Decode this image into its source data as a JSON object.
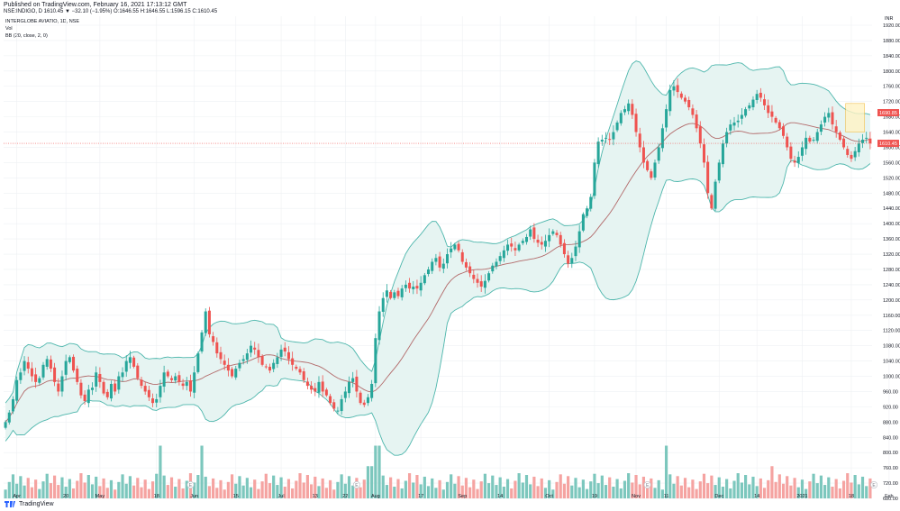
{
  "header": {
    "published": "Published on TradingView.com, February 16, 2021 17:13:12 GMT",
    "symbol_line": "NSE:INDIGO, D  1610.45 ▼ −32.10 (−1.95%)  O:1646.55  H:1646.55  L:1596.15  C:1610.45"
  },
  "legend": {
    "title": "INTERGLOBE AVIATIO, 1D, NSE",
    "vol": "Vol",
    "bb": "BB (20, close, 2, 0)"
  },
  "brand": {
    "name": "TradingView"
  },
  "colors": {
    "up": "#26a69a",
    "down": "#ef5350",
    "up_vol": "#7cc7bd",
    "down_vol": "#f5a3a1",
    "band_fill": "#e6f4f2",
    "band_line": "#4db6ac",
    "basis": "#b26a6a",
    "price_line": "#ef5350",
    "grid": "#eef0f3",
    "event_marker": "#c6c9ce"
  },
  "chart_data": {
    "type": "candlestick",
    "title": "INTERGLOBE AVIATIO, 1D, NSE",
    "ylim": [
      680,
      1920
    ],
    "y_axis_unit": "INR",
    "y_ticks": [
      "1920.00",
      "1880.00",
      "1840.00",
      "1800.00",
      "1760.00",
      "1720.00",
      "1680.00",
      "1640.00",
      "1600.00",
      "1560.00",
      "1520.00",
      "1480.00",
      "1440.00",
      "1400.00",
      "1360.00",
      "1320.00",
      "1280.00",
      "1240.00",
      "1200.00",
      "1160.00",
      "1120.00",
      "1080.00",
      "1040.00",
      "1000.00",
      "960.00",
      "920.00",
      "880.00",
      "840.00",
      "800.00",
      "760.00",
      "720.00",
      "680.00"
    ],
    "y_axis_top_label": "INR",
    "x_ticks": [
      {
        "label": "Apr",
        "index": 3
      },
      {
        "label": "20",
        "index": 16
      },
      {
        "label": "May",
        "index": 25
      },
      {
        "label": "18",
        "index": 40
      },
      {
        "label": "Jun",
        "index": 50
      },
      {
        "label": "15",
        "index": 61
      },
      {
        "label": "Jul",
        "index": 73
      },
      {
        "label": "13",
        "index": 82
      },
      {
        "label": "22",
        "index": 90
      },
      {
        "label": "Aug",
        "index": 98
      },
      {
        "label": "17",
        "index": 110
      },
      {
        "label": "Sep",
        "index": 121
      },
      {
        "label": "14",
        "index": 131
      },
      {
        "label": "Oct",
        "index": 144
      },
      {
        "label": "19",
        "index": 156
      },
      {
        "label": "Nov",
        "index": 167
      },
      {
        "label": "11",
        "index": 175
      },
      {
        "label": "Dec",
        "index": 189
      },
      {
        "label": "14",
        "index": 199
      },
      {
        "label": "2021",
        "index": 211
      },
      {
        "label": "18",
        "index": 224
      },
      {
        "label": "Feb",
        "index": 234
      }
    ],
    "event_markers": [
      {
        "label": "E",
        "index": 49
      },
      {
        "label": "E",
        "index": 93
      },
      {
        "label": "E",
        "index": 170
      },
      {
        "label": "E",
        "index": 230
      }
    ],
    "last_price": {
      "value": 1610.45,
      "label": "1610.45"
    },
    "basis_label": {
      "value": 1690.85,
      "label": "1690.85"
    },
    "highlight_box": {
      "start_index": 223,
      "end_index": 227,
      "low": 1640,
      "high": 1715
    },
    "closes": [
      880,
      905,
      940,
      990,
      1010,
      1040,
      1020,
      1000,
      985,
      995,
      1030,
      1045,
      1020,
      985,
      960,
      1000,
      1040,
      1050,
      1015,
      985,
      950,
      935,
      965,
      970,
      1010,
      985,
      955,
      945,
      980,
      960,
      1000,
      1010,
      1040,
      1050,
      1025,
      995,
      975,
      960,
      945,
      930,
      940,
      975,
      1010,
      1000,
      990,
      1000,
      985,
      975,
      985,
      960,
      1010,
      1060,
      1115,
      1170,
      1110,
      1090,
      1060,
      1045,
      1030,
      1015,
      1000,
      1020,
      1035,
      1045,
      1060,
      1080,
      1070,
      1050,
      1030,
      1025,
      1015,
      1035,
      1050,
      1070,
      1065,
      1045,
      1030,
      1020,
      1010,
      990,
      975,
      965,
      960,
      985,
      960,
      950,
      930,
      915,
      910,
      940,
      960,
      985,
      995,
      960,
      930,
      925,
      945,
      980,
      1100,
      1170,
      1205,
      1225,
      1205,
      1220,
      1210,
      1230,
      1240,
      1230,
      1235,
      1230,
      1245,
      1265,
      1280,
      1300,
      1310,
      1285,
      1295,
      1320,
      1335,
      1345,
      1330,
      1300,
      1285,
      1270,
      1255,
      1245,
      1235,
      1250,
      1270,
      1290,
      1300,
      1315,
      1330,
      1345,
      1340,
      1330,
      1345,
      1355,
      1365,
      1385,
      1360,
      1350,
      1345,
      1355,
      1370,
      1380,
      1370,
      1345,
      1320,
      1295,
      1310,
      1340,
      1380,
      1425,
      1440,
      1470,
      1560,
      1615,
      1620,
      1625,
      1620,
      1640,
      1665,
      1690,
      1700,
      1715,
      1685,
      1640,
      1600,
      1560,
      1540,
      1520,
      1560,
      1600,
      1650,
      1700,
      1750,
      1760,
      1745,
      1730,
      1720,
      1705,
      1685,
      1650,
      1610,
      1560,
      1480,
      1440,
      1510,
      1560,
      1610,
      1640,
      1660,
      1665,
      1670,
      1685,
      1700,
      1710,
      1725,
      1740,
      1730,
      1710,
      1690,
      1680,
      1665,
      1650,
      1630,
      1600,
      1570,
      1560,
      1575,
      1600,
      1625,
      1615,
      1620,
      1640,
      1660,
      1680,
      1690,
      1660,
      1640,
      1620,
      1600,
      1580,
      1570,
      1590,
      1610,
      1620,
      1625,
      1610.45
    ],
    "series": [
      {
        "name": "BB upper",
        "type": "line"
      },
      {
        "name": "BB basis",
        "type": "line"
      },
      {
        "name": "BB lower",
        "type": "line"
      },
      {
        "name": "Vol",
        "type": "histogram"
      }
    ],
    "volume_ylim": [
      0,
      100
    ],
    "grid": true
  }
}
